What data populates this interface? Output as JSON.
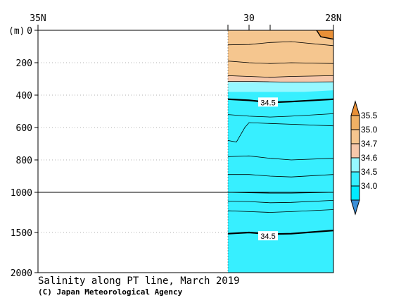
{
  "chart_data": {
    "type": "heatmap",
    "title": "Salinity along PT line, March 2019",
    "credit": "(C) Japan Meteorological Agency",
    "y_axis_unit": "(m)",
    "x_ticks": [
      {
        "lat": 35,
        "label": "35N"
      },
      {
        "lat": 30,
        "label": "30"
      },
      {
        "lat": 28,
        "label": "28N"
      }
    ],
    "x_range_lat": [
      35,
      28
    ],
    "data_start_lat": 30.5,
    "extra_station_lats": [
      29.5
    ],
    "y_ticks_upper": [
      {
        "depth": 0,
        "label": "0"
      },
      {
        "depth": 200,
        "label": "200"
      },
      {
        "depth": 400,
        "label": "400"
      },
      {
        "depth": 600,
        "label": "600"
      },
      {
        "depth": 800,
        "label": "800"
      },
      {
        "depth": 1000,
        "label": "1000"
      }
    ],
    "y_ticks_lower": [
      {
        "depth": 1500,
        "label": "1500"
      },
      {
        "depth": 2000,
        "label": "2000"
      }
    ],
    "y_axis_break_depth": 1000,
    "y_range_m": [
      0,
      2000
    ],
    "colorbar": {
      "levels": [
        "34.0",
        "34.5",
        "34.6",
        "34.7",
        "35.0",
        "35.5"
      ],
      "colors": [
        "#3b8fd8",
        "#00eaff",
        "#37efff",
        "#96f8ff",
        "#f6c7aa",
        "#f5c68f",
        "#f0b165",
        "#e99037"
      ]
    },
    "bands": [
      {
        "name": ">35.5",
        "color": "#e99037"
      },
      {
        "name": "35.0-35.5",
        "color": "#f0b165"
      },
      {
        "name": "34.7-35.0",
        "color": "#f5c68f"
      },
      {
        "name": "34.6-34.7",
        "color": "#f6c7aa"
      },
      {
        "name": "34.5-34.6",
        "color": "#96f8ff"
      },
      {
        "name": "34.0-34.5",
        "color": "#37efff"
      }
    ],
    "contour_labels": [
      {
        "lat": 29.55,
        "depth": 445,
        "text": "34.5"
      },
      {
        "lat": 29.55,
        "depth": 1545,
        "text": "34.5"
      }
    ],
    "contours_m": [
      {
        "lat": [
          30.5,
          30.0,
          29.5,
          29.0,
          28.0
        ],
        "depth": [
          90,
          88,
          75,
          70,
          95
        ],
        "bold": false
      },
      {
        "lat": [
          30.5,
          30.0,
          29.5,
          29.0,
          28.0
        ],
        "depth": [
          190,
          200,
          205,
          200,
          205
        ],
        "bold": false
      },
      {
        "lat": [
          30.5,
          30.0,
          29.5,
          29.0,
          28.0
        ],
        "depth": [
          280,
          285,
          290,
          285,
          280
        ],
        "bold": false
      },
      {
        "lat": [
          30.5,
          30.0,
          29.5,
          29.0,
          28.0
        ],
        "depth": [
          315,
          315,
          318,
          320,
          318
        ],
        "bold": false
      },
      {
        "lat": [
          30.5,
          30.0,
          29.5,
          29.0,
          28.0
        ],
        "depth": [
          425,
          432,
          445,
          440,
          425
        ],
        "bold": true
      },
      {
        "lat": [
          30.5,
          30.0,
          29.5,
          29.0,
          28.0
        ],
        "depth": [
          520,
          530,
          535,
          530,
          515
        ],
        "bold": false
      },
      {
        "lat": [
          30.5,
          30.3,
          30.1,
          30.0,
          29.5,
          29.0,
          28.0
        ],
        "depth": [
          680,
          690,
          600,
          570,
          575,
          580,
          590
        ],
        "bold": false
      },
      {
        "lat": [
          30.5,
          30.0,
          29.5,
          29.0,
          28.0
        ],
        "depth": [
          780,
          775,
          790,
          800,
          790
        ],
        "bold": false
      },
      {
        "lat": [
          30.5,
          30.0,
          29.5,
          29.0,
          28.0
        ],
        "depth": [
          890,
          890,
          900,
          905,
          890
        ],
        "bold": false
      },
      {
        "lat": [
          30.5,
          30.0,
          29.5,
          29.0,
          28.0
        ],
        "depth": [
          1000,
          1005,
          1010,
          1010,
          1000
        ],
        "bold": false
      },
      {
        "lat": [
          30.5,
          30.0,
          29.5,
          29.0,
          28.0
        ],
        "depth": [
          1110,
          1115,
          1130,
          1125,
          1100
        ],
        "bold": false
      },
      {
        "lat": [
          30.5,
          30.0,
          29.5,
          29.0,
          28.0
        ],
        "depth": [
          1230,
          1240,
          1250,
          1240,
          1215
        ],
        "bold": false
      },
      {
        "lat": [
          30.5,
          30.0,
          29.5,
          29.0,
          28.0
        ],
        "depth": [
          1515,
          1500,
          1520,
          1515,
          1475
        ],
        "bold": true
      }
    ],
    "top_right_contour": {
      "lat": [
        28.4,
        28.3,
        28.0
      ],
      "depth": [
        0,
        40,
        55
      ]
    }
  }
}
